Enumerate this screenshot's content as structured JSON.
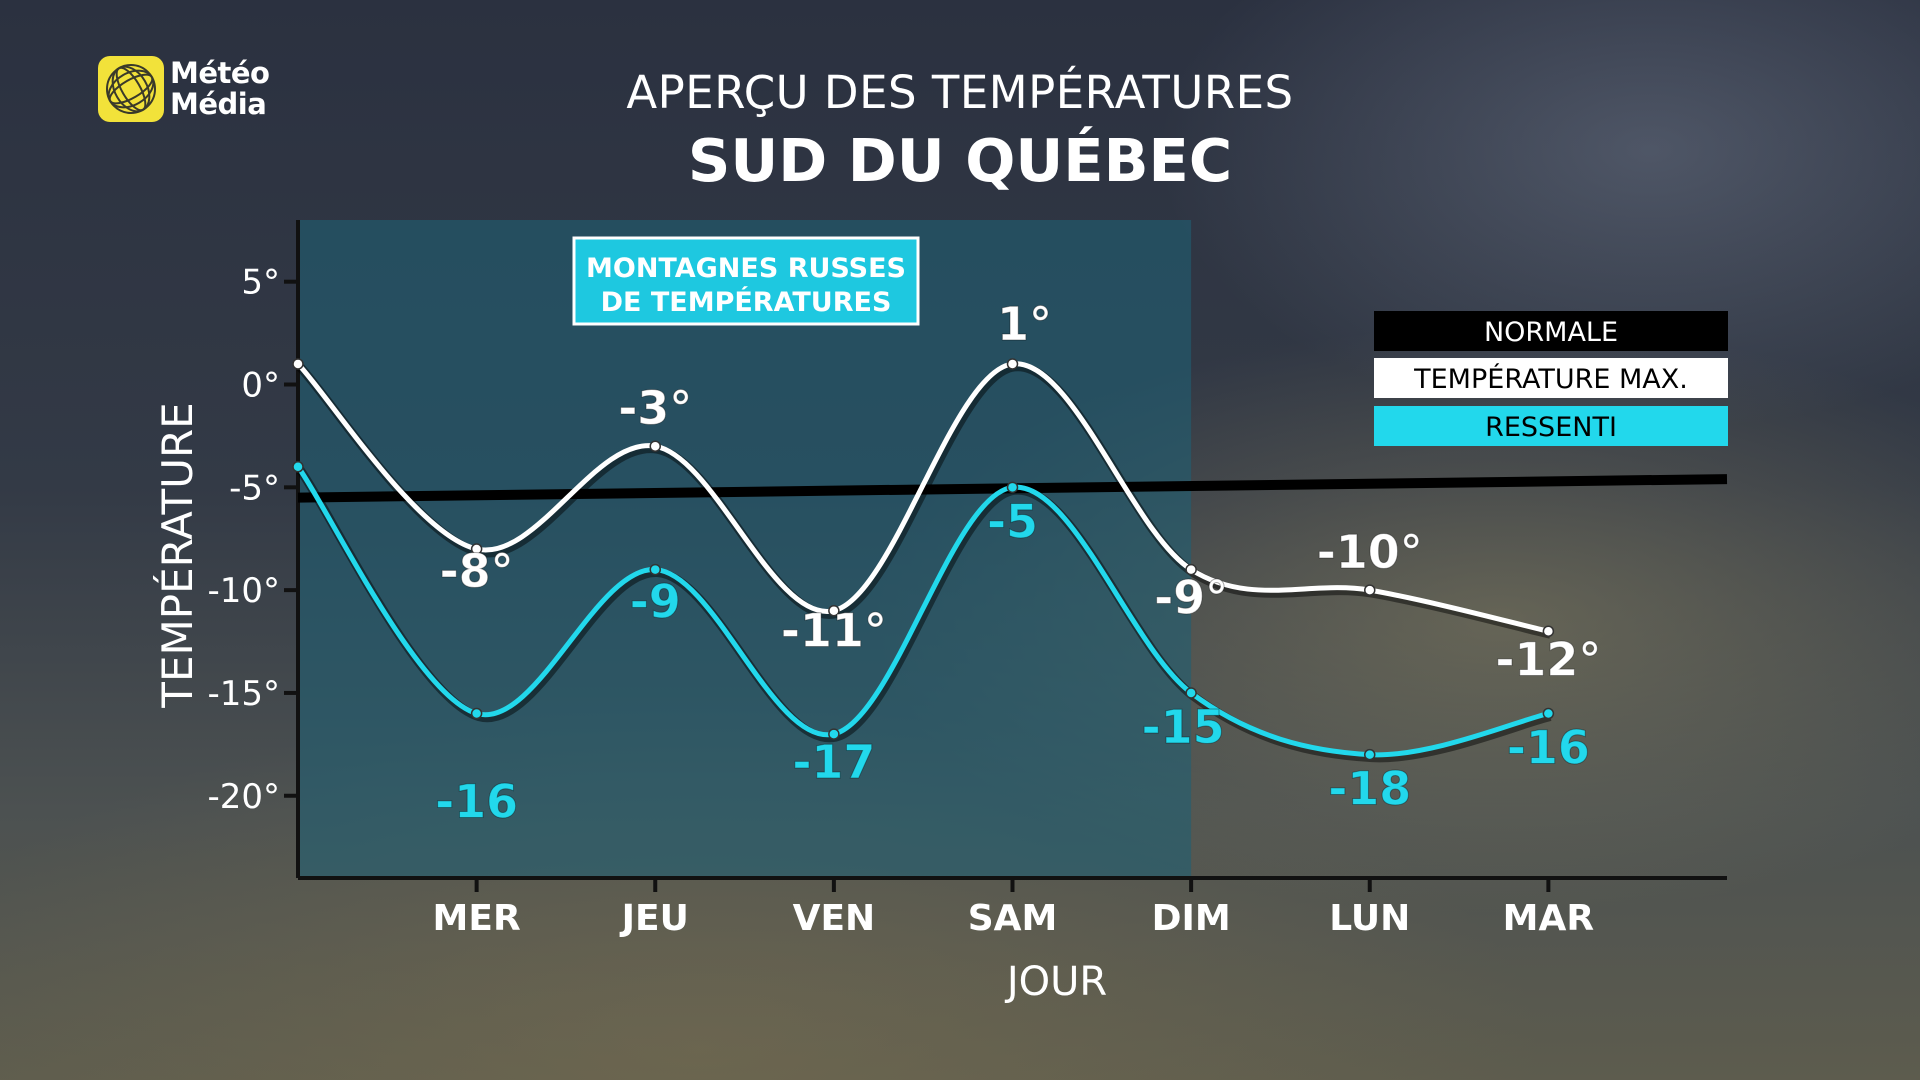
{
  "logo": {
    "line1": "Météo",
    "line2": "Média"
  },
  "title": "APERÇU DES TEMPÉRATURES",
  "subtitle": "SUD DU QUÉBEC",
  "annotation": {
    "line1": "MONTAGNES RUSSES",
    "line2": "DE TEMPÉRATURES"
  },
  "colors": {
    "normal": "#000000",
    "max": "#ffffff",
    "feels": "#22d8ec",
    "label_bg": "#1ec8e0",
    "highlight": "#1f5f73"
  },
  "chart_data": {
    "type": "line",
    "xlabel": "JOUR",
    "ylabel": "TEMPÉRATURE",
    "ylim": [
      -24,
      8
    ],
    "yticks": [
      5,
      0,
      -5,
      -10,
      -15,
      -20
    ],
    "ytick_labels": [
      "5°",
      "0°",
      "-5°",
      "-10°",
      "-15°",
      "-20°"
    ],
    "x": [
      0,
      1,
      2,
      3,
      4,
      5,
      6,
      7
    ],
    "xlim": [
      0,
      8
    ],
    "categories": [
      "MER",
      "JEU",
      "VEN",
      "SAM",
      "DIM",
      "LUN",
      "MAR"
    ],
    "category_x": [
      1,
      2,
      3,
      4,
      5,
      6,
      7
    ],
    "highlight_range": [
      0,
      5
    ],
    "legend": {
      "placement": "top-right",
      "entries": [
        "NORMALE",
        "TEMPÉRATURE MAX.",
        "RESSENTI"
      ]
    },
    "series": [
      {
        "name": "NORMALE",
        "x": [
          0,
          8
        ],
        "values": [
          -5.5,
          -4.6
        ]
      },
      {
        "name": "TEMPÉRATURE MAX.",
        "x": [
          0,
          1,
          2,
          3,
          4,
          5,
          6,
          7
        ],
        "values": [
          1,
          -8,
          -3,
          -11,
          1,
          -9,
          -10,
          -12
        ],
        "labels": [
          null,
          "-8°",
          "-3°",
          "-11°",
          "1°",
          "-9°",
          "-10°",
          "-12°"
        ]
      },
      {
        "name": "RESSENTI",
        "x": [
          0,
          1,
          2,
          3,
          4,
          5,
          6,
          7
        ],
        "values": [
          -4,
          -16,
          -9,
          -17,
          -5,
          -15,
          -18,
          -16
        ],
        "labels": [
          null,
          "-16",
          "-9",
          "-17",
          "-5",
          "-15",
          "-18",
          "-16"
        ]
      }
    ]
  }
}
